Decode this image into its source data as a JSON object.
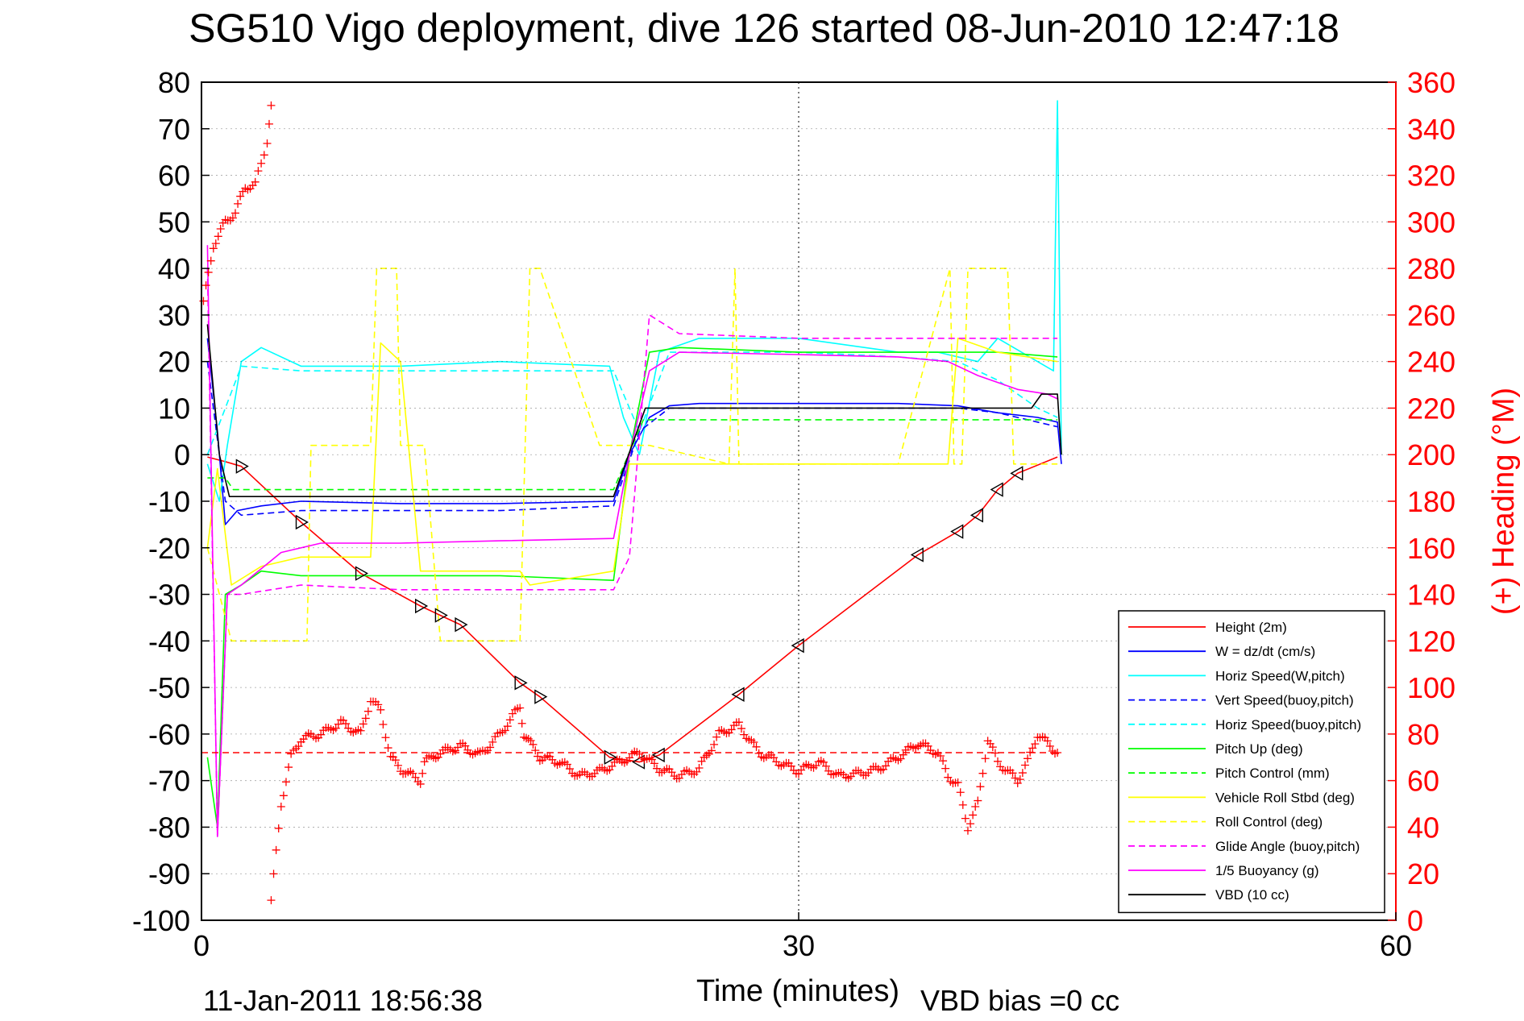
{
  "chart_data": {
    "type": "line",
    "title": "SG510 Vigo deployment, dive 126 started 08-Jun-2010 12:47:18",
    "xlabel": "Time (minutes)",
    "ylabel_right": "(+) Heading (°M)",
    "timestamp": "11-Jan-2011 18:56:38",
    "vbd_bias": "VBD bias =0 cc",
    "xlim": [
      0,
      60
    ],
    "ylim": [
      -100,
      80
    ],
    "ylim_right": [
      0,
      360
    ],
    "xticks": [
      "0",
      "30",
      "60"
    ],
    "yticks": [
      "80",
      "70",
      "60",
      "50",
      "40",
      "30",
      "20",
      "10",
      "0",
      "-10",
      "-20",
      "-30",
      "-40",
      "-50",
      "-60",
      "-70",
      "-80",
      "-90",
      "-100"
    ],
    "yticks_right": [
      "360",
      "340",
      "320",
      "300",
      "280",
      "260",
      "240",
      "220",
      "200",
      "180",
      "160",
      "140",
      "120",
      "100",
      "80",
      "60",
      "40",
      "20",
      "0"
    ],
    "grid": "x-at-30",
    "legend_position": "bottom-right",
    "colors": {
      "axis_right": "#ff0000",
      "height": "#ff0000",
      "w": "#0000ff",
      "horiz_speed": "#00ffff",
      "pitch": "#00ff00",
      "roll": "#ffff00",
      "glide": "#ff00ff",
      "vbd": "#000000"
    },
    "series": [
      {
        "name": "Height (2m)",
        "color": "#ff0000",
        "style": "solid",
        "x": [
          0.3,
          1.2,
          2,
          5,
          8,
          11,
          12,
          13,
          16,
          17,
          20.5,
          22,
          23,
          27,
          30,
          36,
          38,
          39,
          40,
          41,
          43
        ],
        "y": [
          -0.5,
          -1.5,
          -2.5,
          -14.5,
          -25.5,
          -32.5,
          -34.5,
          -36.5,
          -49,
          -52,
          -65,
          -66,
          -64.5,
          -51.5,
          -41,
          -21.5,
          -16.5,
          -13,
          -7.5,
          -4,
          -0.5
        ]
      },
      {
        "name": "W = dz/dt (cm/s)",
        "color": "#0000ff",
        "style": "solid",
        "x": [
          0.3,
          0.8,
          1.2,
          1.8,
          3,
          5,
          10,
          15,
          20.7,
          21.5,
          22.5,
          23.5,
          25,
          30,
          35,
          38,
          40,
          42,
          43,
          43.2
        ],
        "y": [
          25,
          5,
          -15,
          -12,
          -11,
          -10,
          -10.5,
          -10.5,
          -10,
          0,
          8,
          10.5,
          11,
          11,
          11,
          10.5,
          9,
          8,
          7,
          -2
        ]
      },
      {
        "name": "Horiz Speed(W,pitch)",
        "color": "#00ffff",
        "style": "solid",
        "x": [
          0.3,
          0.9,
          1.3,
          2,
          3,
          5,
          10,
          15,
          20.5,
          21.2,
          22,
          23,
          25,
          30,
          35,
          37,
          39,
          40,
          42,
          42.8,
          43,
          43.2
        ],
        "y": [
          -2,
          -10,
          2,
          20,
          23,
          19,
          19,
          20,
          19,
          8,
          0,
          22,
          25,
          25,
          22,
          22,
          20,
          25,
          20,
          18,
          76,
          0
        ]
      },
      {
        "name": "Vert Speed(buoy,pitch)",
        "color": "#0000ff",
        "style": "dashed",
        "x": [
          0.3,
          1.2,
          2,
          5,
          10,
          15,
          20.7,
          22,
          23.5,
          30,
          35,
          38,
          40,
          42,
          43
        ],
        "y": [
          20,
          -10,
          -13,
          -12,
          -12,
          -12,
          -11,
          5,
          10,
          10,
          10,
          10,
          9,
          7,
          6
        ]
      },
      {
        "name": "Horiz Speed(buoy,pitch)",
        "color": "#00ffff",
        "style": "dashed",
        "x": [
          0.3,
          1.2,
          2,
          5,
          10,
          15,
          20.7,
          22,
          23.5,
          30,
          35,
          38,
          40,
          42,
          43
        ],
        "y": [
          0,
          10,
          19,
          18,
          18,
          18,
          18,
          5,
          22,
          22,
          21,
          20,
          16,
          10,
          8
        ]
      },
      {
        "name": "Pitch Up (deg)",
        "color": "#00ff00",
        "style": "solid",
        "x": [
          0.3,
          0.8,
          1.2,
          2,
          3,
          5,
          10,
          15,
          20.7,
          21.5,
          22.5,
          24,
          30,
          35,
          38,
          40,
          43
        ],
        "y": [
          -65,
          -80,
          -30,
          -28,
          -25,
          -26,
          -26,
          -26,
          -27,
          0,
          22,
          23,
          22,
          22,
          22,
          22,
          21
        ]
      },
      {
        "name": "Pitch Control (mm)",
        "color": "#00ff00",
        "style": "dashed",
        "x": [
          0.3,
          1.2,
          1.6,
          5,
          10,
          15,
          20.7,
          22.2,
          30,
          38,
          43
        ],
        "y": [
          -5,
          -5,
          -7.5,
          -7.5,
          -7.5,
          -7.5,
          -7.5,
          7.5,
          7.5,
          7.5,
          7.5
        ]
      },
      {
        "name": "Vehicle Roll Stbd (deg)",
        "color": "#ffff00",
        "style": "solid",
        "x": [
          0.3,
          0.8,
          1.5,
          3,
          5,
          8.5,
          9,
          10,
          11,
          12,
          16,
          16.5,
          20.7,
          21.5,
          22.5,
          30,
          37.5,
          38,
          40,
          43
        ],
        "y": [
          -20,
          -3,
          -28,
          -24,
          -22,
          -22,
          24,
          20,
          -25,
          -25,
          -25,
          -28,
          -25,
          -2,
          -2,
          -2,
          -2,
          25,
          22,
          20
        ]
      },
      {
        "name": "Roll Control (deg)",
        "color": "#ffff00",
        "style": "dashed",
        "x": [
          0.3,
          1.5,
          2.5,
          5.3,
          5.5,
          8.5,
          8.8,
          9.8,
          10,
          11.2,
          12,
          16,
          16.5,
          17,
          20,
          21,
          22.5,
          26.5,
          26.8,
          27,
          35,
          37.6,
          37.8,
          38.2,
          38.5,
          39,
          39.3,
          40.5,
          40.8,
          43
        ],
        "y": [
          -20,
          -40,
          -40,
          -40,
          2,
          2,
          40,
          40,
          2,
          2,
          -40,
          -40,
          40,
          40,
          2,
          2,
          2,
          -2,
          40,
          -2,
          -2,
          40,
          -2,
          -2,
          40,
          40,
          40,
          40,
          -2,
          -2
        ]
      },
      {
        "name": "Glide Angle (buoy,pitch)",
        "color": "#ff00ff",
        "style": "dashed",
        "x": [
          0.3,
          0.8,
          1.3,
          2,
          5,
          10,
          15,
          20.7,
          21.5,
          22.5,
          24,
          30,
          35,
          38,
          40,
          43
        ],
        "y": [
          40,
          -82,
          -30,
          -30,
          -28,
          -29,
          -29,
          -29,
          -22,
          30,
          26,
          25,
          25,
          25,
          25,
          25
        ]
      },
      {
        "name": "1/5 Buoyancy (g)",
        "color": "#ff00ff",
        "style": "solid",
        "x": [
          0.3,
          0.8,
          1.3,
          2,
          4,
          6,
          10,
          15,
          20.7,
          21.5,
          22.5,
          24,
          30,
          35,
          37.5,
          39,
          41,
          42.5,
          43
        ],
        "y": [
          45,
          -82,
          -30,
          -28,
          -21,
          -19,
          -19,
          -18.5,
          -18,
          0,
          18,
          22,
          21.5,
          21,
          20,
          17,
          14,
          13,
          12
        ]
      },
      {
        "name": "VBD (10 cc)",
        "color": "#000000",
        "style": "solid",
        "x": [
          0.3,
          0.9,
          1.4,
          2,
          10,
          20.7,
          22.3,
          23.5,
          30,
          35,
          40.5,
          41.7,
          42.2,
          43,
          43.2
        ],
        "y": [
          28,
          0,
          -9,
          -9,
          -9,
          -9,
          10,
          10,
          10,
          10,
          10,
          10,
          13,
          13,
          0
        ]
      }
    ],
    "heading": {
      "name": "Heading",
      "color": "#ff0000",
      "axis": "right",
      "x": [
        0.1,
        0.6,
        1.2,
        1.7,
        2.2,
        2.7,
        3.0,
        3.3,
        3.5
      ],
      "y": [
        265,
        290,
        300,
        304,
        315,
        316,
        325,
        335,
        350
      ],
      "x2": [
        3.5,
        4,
        4.5,
        5,
        6,
        7,
        8,
        8.5,
        9,
        9.5,
        10,
        11,
        11.2,
        12,
        13,
        14,
        15,
        16,
        16.2,
        17,
        18,
        19,
        20,
        21,
        22,
        23,
        24,
        25,
        26,
        27,
        28,
        29,
        30,
        31,
        32,
        33,
        34,
        35,
        36,
        37,
        37.5,
        38,
        38.5,
        39,
        39.5,
        40,
        41,
        41.5,
        42,
        42.5,
        43
      ],
      "y2": [
        8,
        50,
        70,
        78,
        80,
        85,
        80,
        95,
        90,
        70,
        65,
        60,
        68,
        72,
        75,
        71,
        80,
        92,
        80,
        70,
        68,
        62,
        64,
        68,
        72,
        65,
        62,
        65,
        80,
        84,
        72,
        68,
        64,
        68,
        62,
        63,
        65,
        70,
        76,
        72,
        62,
        58,
        40,
        50,
        78,
        68,
        60,
        68,
        80,
        76,
        72
      ],
      "mean": 72
    }
  }
}
